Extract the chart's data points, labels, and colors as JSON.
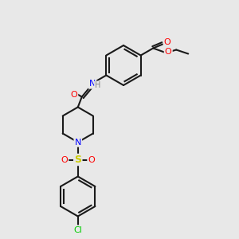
{
  "background_color": "#e8e8e8",
  "bond_color": "#1a1a1a",
  "atom_colors": {
    "O": "#ff0000",
    "N": "#0000ff",
    "S": "#cccc00",
    "Cl": "#00cc00",
    "C": "#1a1a1a",
    "H": "#808080"
  },
  "figsize": [
    3.0,
    3.0
  ],
  "dpi": 100
}
